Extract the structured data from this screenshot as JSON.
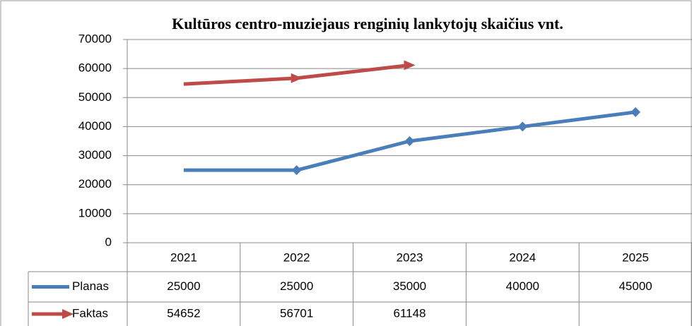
{
  "chart_data": {
    "type": "line",
    "title": "Kultūros centro-muziejaus renginių lankytojų skaičius vnt.",
    "categories": [
      "2021",
      "2022",
      "2023",
      "2024",
      "2025"
    ],
    "series": [
      {
        "name": "Planas",
        "color": "#4a7ebb",
        "marker": "diamond",
        "values": [
          25000,
          25000,
          35000,
          40000,
          45000
        ]
      },
      {
        "name": "Faktas",
        "color": "#be4b48",
        "marker": "arrow",
        "values": [
          54652,
          56701,
          61148,
          null,
          null
        ]
      }
    ],
    "ylim": [
      0,
      70000
    ],
    "yticks": [
      0,
      10000,
      20000,
      30000,
      40000,
      50000,
      60000,
      70000
    ],
    "grid": true,
    "data_table": true
  }
}
